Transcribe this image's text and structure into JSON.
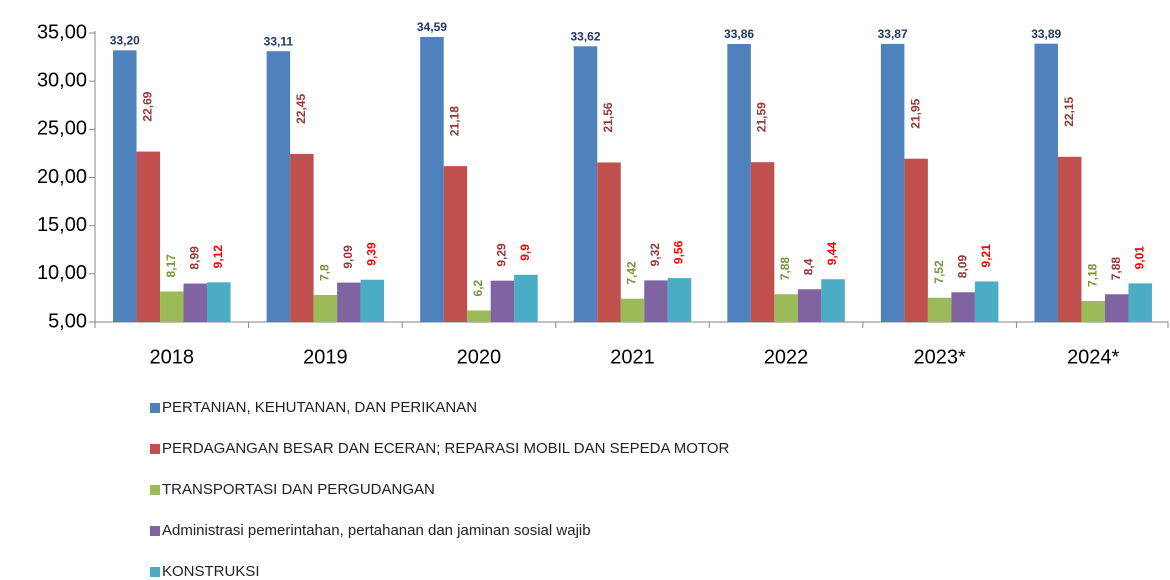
{
  "chart_data": {
    "type": "bar",
    "categories": [
      "2018",
      "2019",
      "2020",
      "2021",
      "2022",
      "2023*",
      "2024*"
    ],
    "series": [
      {
        "name": "PERTANIAN, KEHUTANAN, DAN PERIKANAN",
        "color": "#4f81bd",
        "label_color": "#1f3864",
        "values": [
          33.2,
          33.11,
          34.59,
          33.62,
          33.86,
          33.87,
          33.89
        ],
        "value_labels": [
          "33,20",
          "33,11",
          "34,59",
          "33,62",
          "33,86",
          "33,87",
          "33,89"
        ]
      },
      {
        "name": "PERDAGANGAN BESAR DAN ECERAN; REPARASI MOBIL DAN SEPEDA MOTOR",
        "color": "#c0504d",
        "label_color": "#953735",
        "values": [
          22.69,
          22.45,
          21.18,
          21.56,
          21.59,
          21.95,
          22.15
        ],
        "value_labels": [
          "22,69",
          "22,45",
          "21,18",
          "21,56",
          "21,59",
          "21,95",
          "22,15"
        ]
      },
      {
        "name": "TRANSPORTASI DAN PERGUDANGAN",
        "color": "#9bbb59",
        "label_color": "#77933c",
        "values": [
          8.17,
          7.8,
          6.2,
          7.42,
          7.88,
          7.52,
          7.18
        ],
        "value_labels": [
          "8,17",
          "7,8",
          "6,2",
          "7,42",
          "7,88",
          "7,52",
          "7,18"
        ]
      },
      {
        "name": "Administrasi pemerintahan, pertahanan dan jaminan sosial wajib",
        "color": "#8064a2",
        "label_color": "#953735",
        "values": [
          8.99,
          9.09,
          9.29,
          9.32,
          8.4,
          8.09,
          7.88
        ],
        "value_labels": [
          "8,99",
          "9,09",
          "9,29",
          "9,32",
          "8,4",
          "8,09",
          "7,88"
        ]
      },
      {
        "name": "KONSTRUKSI",
        "color": "#4bacc6",
        "label_color": "#ff0000",
        "values": [
          9.12,
          9.39,
          9.9,
          9.56,
          9.44,
          9.21,
          9.01
        ],
        "value_labels": [
          "9,12",
          "9,39",
          "9,9",
          "9,56",
          "9,44",
          "9,21",
          "9,01"
        ]
      }
    ],
    "ylim": [
      5,
      35
    ],
    "yticks": [
      {
        "value": 5,
        "label": "5,00"
      },
      {
        "value": 10,
        "label": "10,00"
      },
      {
        "value": 15,
        "label": "15,00"
      },
      {
        "value": 20,
        "label": "20,00"
      },
      {
        "value": 25,
        "label": "25,00"
      },
      {
        "value": 30,
        "label": "30,00"
      },
      {
        "value": 35,
        "label": "35,00"
      }
    ],
    "legend": "bottom"
  }
}
